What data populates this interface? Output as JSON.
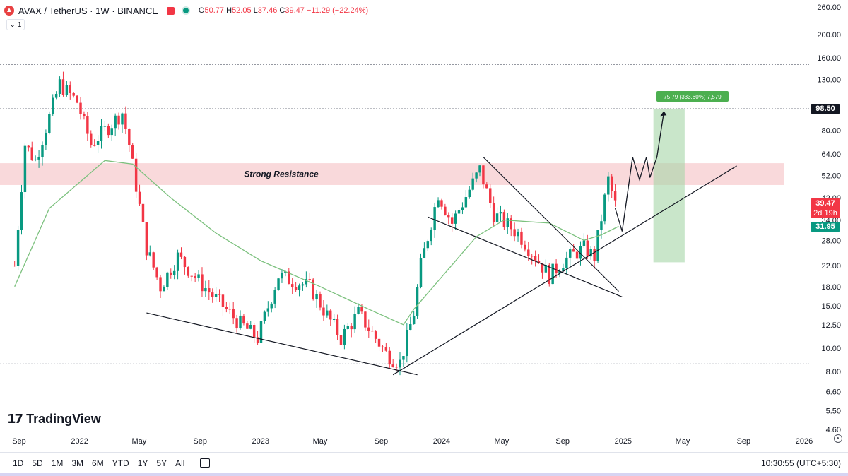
{
  "header": {
    "symbol": "AVAX / TetherUS · 1W · BINANCE",
    "ohlc": {
      "o_label": "O",
      "o": "50.77",
      "h_label": "H",
      "h": "52.05",
      "l_label": "L",
      "l": "37.46",
      "c_label": "C",
      "c": "39.47",
      "change": "−11.29 (−22.24%)"
    },
    "collapse_label": "1"
  },
  "brand": {
    "mark": "17",
    "name": "TradingView"
  },
  "colors": {
    "up": "#089981",
    "down": "#f23645",
    "ma": "#7cc17e",
    "resistance_zone": "#f6c9cc",
    "target_zone": "#a5d6a7",
    "grid": "#9598a1"
  },
  "price_tags": {
    "target": "98.50",
    "last": "39.47",
    "countdown": "2d 19h",
    "ma_value": "31.95"
  },
  "chart_data": {
    "type": "candlestick",
    "title": "AVAX / TetherUS · 1W · BINANCE",
    "y_scale": "log",
    "y_ticks": [
      260,
      200,
      160,
      130,
      98.5,
      80,
      64,
      52,
      42,
      34,
      28,
      22,
      18,
      15,
      12.5,
      10,
      8,
      6.6,
      5.5,
      4.6
    ],
    "y_tick_labels": [
      "260.00",
      "200.00",
      "160.00",
      "130.00",
      "",
      "80.00",
      "64.00",
      "52.00",
      "42.00",
      "34.00",
      "28.00",
      "22.00",
      "18.00",
      "15.00",
      "12.50",
      "10.00",
      "8.00",
      "6.60",
      "5.50",
      "4.60"
    ],
    "x_tick_labels": [
      "Sep",
      "2022",
      "May",
      "Sep",
      "2023",
      "May",
      "Sep",
      "2024",
      "May",
      "Sep",
      "2025",
      "May",
      "Sep",
      "2026"
    ],
    "x_tick_dates": [
      "2021-09-01",
      "2022-01-01",
      "2022-05-01",
      "2022-09-01",
      "2023-01-01",
      "2023-05-01",
      "2023-09-01",
      "2024-01-01",
      "2024-05-01",
      "2024-09-01",
      "2025-01-01",
      "2025-05-01",
      "2025-09-01",
      "2026-01-01"
    ],
    "ohlc_anchors": [
      {
        "date": "2021-08-23",
        "close": 22
      },
      {
        "date": "2021-09-13",
        "close": 70
      },
      {
        "date": "2021-10-04",
        "close": 60
      },
      {
        "date": "2021-11-22",
        "close": 125
      },
      {
        "date": "2021-12-27",
        "close": 105
      },
      {
        "date": "2022-01-24",
        "close": 70
      },
      {
        "date": "2022-03-28",
        "close": 95
      },
      {
        "date": "2022-04-11",
        "close": 70
      },
      {
        "date": "2022-05-16",
        "close": 26
      },
      {
        "date": "2022-06-13",
        "close": 18
      },
      {
        "date": "2022-07-18",
        "close": 24
      },
      {
        "date": "2022-08-29",
        "close": 19
      },
      {
        "date": "2022-11-14",
        "close": 13
      },
      {
        "date": "2022-12-26",
        "close": 11
      },
      {
        "date": "2023-02-06",
        "close": 20
      },
      {
        "date": "2023-04-10",
        "close": 18
      },
      {
        "date": "2023-06-12",
        "close": 11
      },
      {
        "date": "2023-07-17",
        "close": 14
      },
      {
        "date": "2023-09-11",
        "close": 9.5
      },
      {
        "date": "2023-10-09",
        "close": 8.7
      },
      {
        "date": "2023-11-06",
        "close": 14
      },
      {
        "date": "2023-11-20",
        "close": 22
      },
      {
        "date": "2023-12-25",
        "close": 44
      },
      {
        "date": "2024-01-22",
        "close": 33
      },
      {
        "date": "2024-03-18",
        "close": 55
      },
      {
        "date": "2024-04-15",
        "close": 36
      },
      {
        "date": "2024-06-03",
        "close": 30
      },
      {
        "date": "2024-08-05",
        "close": 20
      },
      {
        "date": "2024-09-02",
        "close": 23
      },
      {
        "date": "2024-10-14",
        "close": 26
      },
      {
        "date": "2024-11-04",
        "close": 24
      },
      {
        "date": "2024-12-02",
        "close": 50
      },
      {
        "date": "2024-12-16",
        "close": 39.47
      }
    ],
    "moving_average": [
      {
        "date": "2021-08-23",
        "value": 18
      },
      {
        "date": "2021-11-01",
        "value": 38
      },
      {
        "date": "2022-02-21",
        "value": 60
      },
      {
        "date": "2022-04-18",
        "value": 58
      },
      {
        "date": "2022-07-04",
        "value": 42
      },
      {
        "date": "2022-10-03",
        "value": 30
      },
      {
        "date": "2023-01-02",
        "value": 23
      },
      {
        "date": "2023-05-01",
        "value": 18
      },
      {
        "date": "2023-08-07",
        "value": 14.5
      },
      {
        "date": "2023-10-16",
        "value": 12.5
      },
      {
        "date": "2023-11-06",
        "value": 14.5
      },
      {
        "date": "2024-01-08",
        "value": 20.5
      },
      {
        "date": "2024-03-11",
        "value": 29
      },
      {
        "date": "2024-05-06",
        "value": 34
      },
      {
        "date": "2024-08-05",
        "value": 33
      },
      {
        "date": "2024-10-14",
        "value": 28
      },
      {
        "date": "2024-11-18",
        "value": 29.5
      },
      {
        "date": "2024-12-23",
        "value": 32
      }
    ],
    "annotations": {
      "resistance_label": "Strong Resistance",
      "resistance_zone": [
        47.5,
        58.5
      ],
      "target_label": "75.79 (333.60%) 7,579",
      "target_zone": {
        "from_date": "2025-03-03",
        "to_date": "2025-05-05",
        "low": 22.7,
        "high": 98.5
      },
      "trendlines": [
        {
          "from": {
            "date": "2022-05-16",
            "price": 14.0
          },
          "to": {
            "date": "2023-11-13",
            "price": 7.75
          }
        },
        {
          "from": {
            "date": "2023-09-25",
            "price": 7.75
          },
          "to": {
            "date": "2025-08-18",
            "price": 57
          }
        },
        {
          "from": {
            "date": "2023-12-04",
            "price": 35
          },
          "to": {
            "date": "2024-12-30",
            "price": 16.3
          }
        },
        {
          "from": {
            "date": "2024-03-25",
            "price": 62
          },
          "to": {
            "date": "2024-12-23",
            "price": 17.2
          }
        }
      ],
      "projection_path": [
        {
          "date": "2024-12-16",
          "price": 38
        },
        {
          "date": "2024-12-30",
          "price": 30.5
        },
        {
          "date": "2025-01-20",
          "price": 62
        },
        {
          "date": "2025-02-03",
          "price": 50
        },
        {
          "date": "2025-02-17",
          "price": 62
        },
        {
          "date": "2025-02-24",
          "price": 51
        },
        {
          "date": "2025-03-10",
          "price": 62
        },
        {
          "date": "2025-03-24",
          "price": 95
        }
      ],
      "horizontal_lines": [
        150,
        98.5,
        8.6
      ]
    }
  },
  "footer": {
    "ranges": [
      "1D",
      "5D",
      "1M",
      "3M",
      "6M",
      "YTD",
      "1Y",
      "5Y",
      "All"
    ],
    "clock": "10:30:55 (UTC+5:30)"
  }
}
